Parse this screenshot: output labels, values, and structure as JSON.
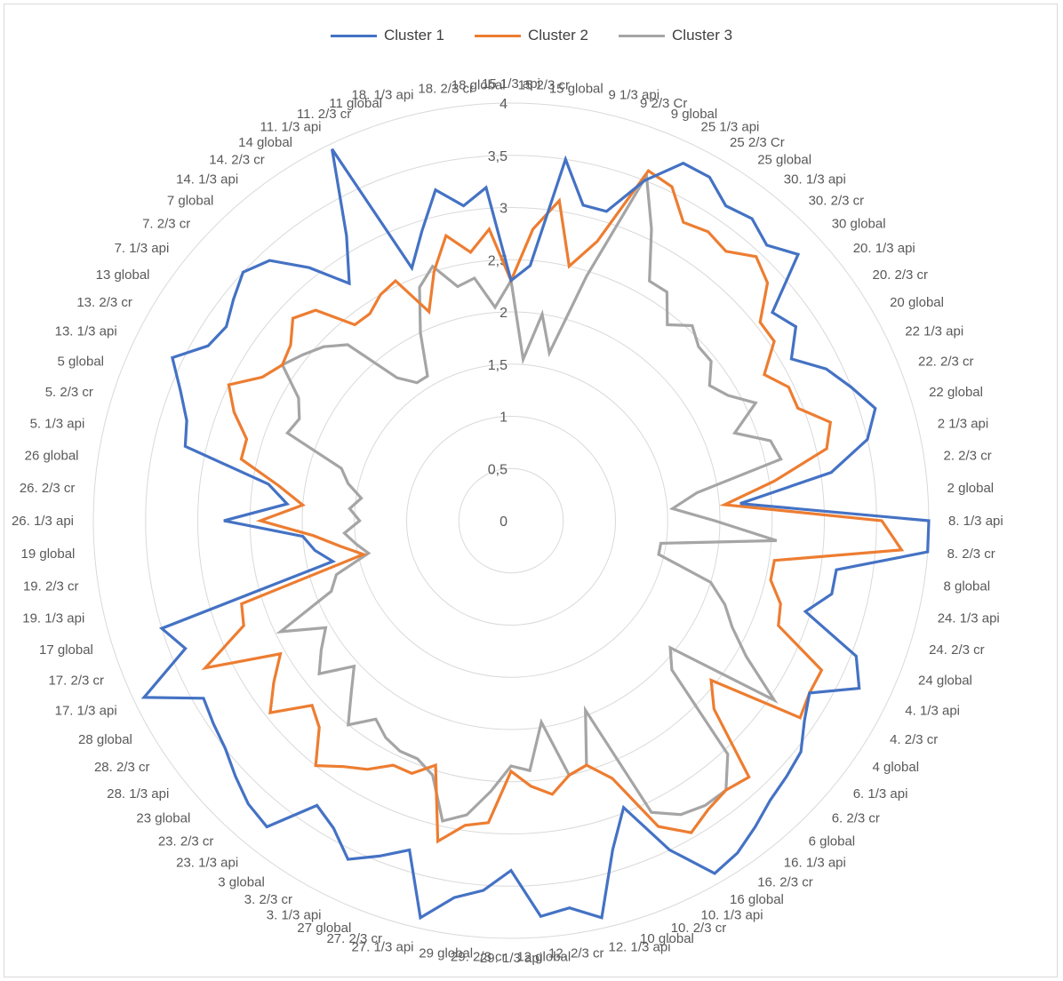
{
  "chart_data": {
    "type": "radar",
    "title": "",
    "rmin": 0,
    "rmax": 4,
    "radial_ticks": [
      "0",
      "0,5",
      "1",
      "1,5",
      "2",
      "2,5",
      "3",
      "3,5",
      "4"
    ],
    "grid": true,
    "legend_position": "top",
    "categories": [
      "15 1/3 api",
      "15 2/3 cr",
      "15 global",
      "9 1/3 api",
      "9 2/3 Cr",
      "9 global",
      "25 1/3 api",
      "25 2/3 Cr",
      "25 global",
      "30. 1/3 api",
      "30. 2/3 cr",
      "30 global",
      "20. 1/3 api",
      "20. 2/3 cr",
      "20 global",
      "22 1/3 api",
      "22. 2/3 cr",
      "22 global",
      "2 1/3 api",
      "2. 2/3 cr",
      "2 global",
      "8. 1/3 api",
      "8. 2/3 cr",
      "8 global",
      "24. 1/3 api",
      "24. 2/3 cr",
      "24 global",
      "4. 1/3 api",
      "4. 2/3 cr",
      "4 global",
      "6. 1/3 api",
      "6. 2/3 cr",
      "6 global",
      "16. 1/3 api",
      "16. 2/3 cr",
      "16 global",
      "10. 1/3 api",
      "10. 2/3 cr",
      "10 global",
      "12. 1/3 api",
      "12. 2/3 cr",
      "12 global",
      "29. 1/3 api",
      "29. 2/3 cr",
      "29 global",
      "27. 1/3 api",
      "27. 2/3 cr",
      "27 global",
      "3. 1/3 api",
      "3. 2/3 cr",
      "3 global",
      "23. 1/3 api",
      "23. 2/3 cr",
      "23 global",
      "28. 1/3 api",
      "28. 2/3 cr",
      "28 global",
      "17. 1/3 api",
      "17. 2/3 cr",
      "17 global",
      "19. 1/3 api",
      "19. 2/3 cr",
      "19 global",
      "26. 1/3 api",
      "26. 2/3 cr",
      "26 global",
      "5. 1/3 api",
      "5. 2/3 cr",
      "5 global",
      "13. 1/3 api",
      "13. 2/3 cr",
      "13 global",
      "7. 1/3 api",
      "7. 2/3 cr",
      "7 global",
      "14. 1/3 api",
      "14. 2/3 cr",
      "14 global",
      "11. 1/3 api",
      "11. 2/3 cr",
      "11 global",
      "18. 1/3 api",
      "18. 2/3 cr",
      "18 global"
    ],
    "series": [
      {
        "name": "Cluster 1",
        "color": "#4472c4",
        "values": [
          2.3,
          2.45,
          3.5,
          3.1,
          3.1,
          3.5,
          3.8,
          3.8,
          3.65,
          3.7,
          3.6,
          3.75,
          3.2,
          3.3,
          3.1,
          3.35,
          3.5,
          3.65,
          3.5,
          3.1,
          2.2,
          4.0,
          4.0,
          3.15,
          3.15,
          2.95,
          3.55,
          3.7,
          3.3,
          3.4,
          3.55,
          3.6,
          3.65,
          3.75,
          3.85,
          3.9,
          3.5,
          2.95,
          3.3,
          3.9,
          3.75,
          3.8,
          3.35,
          3.55,
          3.65,
          3.9,
          3.3,
          3.45,
          3.6,
          3.4,
          3.3,
          3.75,
          3.7,
          3.6,
          3.5,
          3.45,
          3.4,
          3.9,
          3.35,
          3.5,
          1.75,
          1.9,
          2.0,
          2.75,
          2.15,
          2.35,
          3.2,
          3.25,
          3.4,
          3.6,
          3.35,
          3.3,
          3.4,
          3.5,
          3.4,
          3.1,
          2.75,
          3.15,
          3.95,
          2.6,
          2.9,
          3.25,
          3.05,
          3.2
        ]
      },
      {
        "name": "Cluster 2",
        "color": "#ed7d31",
        "values": [
          2.3,
          2.8,
          3.1,
          2.5,
          2.8,
          3.6,
          3.55,
          3.3,
          3.35,
          3.3,
          3.45,
          3.35,
          3.05,
          3.05,
          2.8,
          2.95,
          2.95,
          3.2,
          3.1,
          2.55,
          2.05,
          3.55,
          3.75,
          2.55,
          2.55,
          2.7,
          2.75,
          3.3,
          3.3,
          3.35,
          2.45,
          2.65,
          3.35,
          3.3,
          3.35,
          3.45,
          3.25,
          2.65,
          2.45,
          2.5,
          2.65,
          2.55,
          2.4,
          2.9,
          2.95,
          3.15,
          2.45,
          2.6,
          2.6,
          2.75,
          2.85,
          3.0,
          2.7,
          2.6,
          2.95,
          2.75,
          2.55,
          3.25,
          2.75,
          2.7,
          1.45,
          1.65,
          1.9,
          2.4,
          2.0,
          2.25,
          2.65,
          2.65,
          2.85,
          3.0,
          2.75,
          2.65,
          2.7,
          2.85,
          2.75,
          2.4,
          2.4,
          2.5,
          2.55,
          2.15,
          2.5,
          2.8,
          2.6,
          2.8
        ]
      },
      {
        "name": "Cluster 3",
        "color": "#a5a5a5",
        "values": [
          2.3,
          1.55,
          2.0,
          1.65,
          2.45,
          3.55,
          3.1,
          2.65,
          2.65,
          2.4,
          2.55,
          2.45,
          2.45,
          2.3,
          2.4,
          2.6,
          2.3,
          2.6,
          2.65,
          1.8,
          1.55,
          1.95,
          2.55,
          1.45,
          1.45,
          2.0,
          2.2,
          2.35,
          2.6,
          3.05,
          1.95,
          2.1,
          3.05,
          3.3,
          3.3,
          3.25,
          3.1,
          1.95,
          2.45,
          2.5,
          1.95,
          2.4,
          2.35,
          2.6,
          2.85,
          2.95,
          2.55,
          2.45,
          2.45,
          2.4,
          2.3,
          2.5,
          2.25,
          2.05,
          2.35,
          2.2,
          2.05,
          2.45,
          1.85,
          1.75,
          1.4,
          1.5,
          1.6,
          1.45,
          1.55,
          1.45,
          1.6,
          1.7,
          2.3,
          2.25,
          2.35,
          2.65,
          2.55,
          2.45,
          2.3,
          1.75,
          1.6,
          1.6,
          2.0,
          2.4,
          2.55,
          2.3,
          2.35,
          2.05
        ]
      }
    ]
  }
}
